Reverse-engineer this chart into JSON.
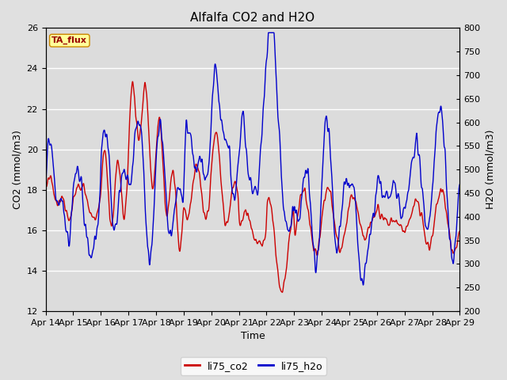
{
  "title": "Alfalfa CO2 and H2O",
  "xlabel": "Time",
  "ylabel_left": "CO2 (mmol/m3)",
  "ylabel_right": "H2O (mmol/m3)",
  "legend_label": "TA_flux",
  "series1_label": "li75_co2",
  "series2_label": "li75_h2o",
  "co2_color": "#cc0000",
  "h2o_color": "#0000cc",
  "ylim_left": [
    12,
    26
  ],
  "ylim_right": [
    200,
    800
  ],
  "background_color": "#e0e0e0",
  "plot_background": "#dcdcdc",
  "xtick_labels": [
    "Apr 14",
    "Apr 15",
    "Apr 16",
    "Apr 17",
    "Apr 18",
    "Apr 19",
    "Apr 20",
    "Apr 21",
    "Apr 22",
    "Apr 23",
    "Apr 24",
    "Apr 25",
    "Apr 26",
    "Apr 27",
    "Apr 28",
    "Apr 29"
  ],
  "yticks_left": [
    12,
    14,
    16,
    18,
    20,
    22,
    24,
    26
  ],
  "yticks_right": [
    200,
    250,
    300,
    350,
    400,
    450,
    500,
    550,
    600,
    650,
    700,
    750,
    800
  ],
  "linewidth": 1.0,
  "legend_box_facecolor": "#ffff99",
  "legend_box_edge": "#cc8800",
  "title_fontsize": 11,
  "axis_fontsize": 9,
  "tick_fontsize": 8
}
